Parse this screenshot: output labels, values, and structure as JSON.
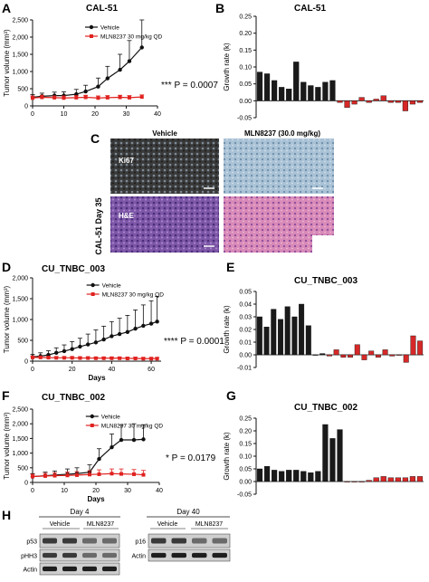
{
  "colors": {
    "vehicle": "#111111",
    "treated": "#e0221f",
    "bar_dark": "#1a1a1a",
    "bar_red": "#d62828"
  },
  "chart_data": [
    {
      "panel": "A",
      "type": "line",
      "title": "CAL-51",
      "xlabel": "",
      "ylabel": "Tumor volume (mm³)",
      "xlim": [
        0,
        40
      ],
      "ylim": [
        0,
        2500
      ],
      "xticks": [
        "0",
        "10",
        "20",
        "30",
        "40"
      ],
      "yticks": [
        "0",
        "500",
        "1,000",
        "1,500",
        "2,000",
        "2,500"
      ],
      "legend": "top-right",
      "annotation": "*** P = 0.0007",
      "series": [
        {
          "name": "Vehicle",
          "color": "#111111",
          "x": [
            0,
            3,
            7,
            10,
            14,
            17,
            21,
            24,
            28,
            31,
            35
          ],
          "y": [
            250,
            280,
            300,
            300,
            340,
            420,
            560,
            800,
            1050,
            1300,
            1700
          ],
          "err": [
            80,
            90,
            100,
            110,
            140,
            180,
            250,
            350,
            450,
            600,
            800
          ]
        },
        {
          "name": "MLN8237 30 mg/kg QD",
          "color": "#e0221f",
          "x": [
            0,
            3,
            7,
            10,
            14,
            17,
            21,
            24,
            28,
            31,
            35
          ],
          "y": [
            230,
            250,
            240,
            230,
            240,
            250,
            230,
            240,
            250,
            240,
            260
          ],
          "err": [
            60,
            60,
            50,
            60,
            60,
            60,
            60,
            60,
            60,
            60,
            60
          ]
        }
      ]
    },
    {
      "panel": "B",
      "type": "bar",
      "title": "CAL-51",
      "ylabel": "Growth rate (k)",
      "ylim": [
        -0.05,
        0.25
      ],
      "yticks": [
        "-0.05",
        "0.00",
        "0.05",
        "0.10",
        "0.15",
        "0.20",
        "0.25"
      ],
      "values": [
        0.085,
        0.08,
        0.06,
        0.04,
        0.035,
        0.115,
        0.055,
        0.045,
        0.04,
        0.055,
        0.06,
        -0.005,
        -0.02,
        -0.01,
        0.01,
        -0.005,
        0.005,
        0.015,
        -0.005,
        -0.005,
        -0.03,
        -0.01,
        -0.005
      ],
      "treated_from_index": 11
    },
    {
      "panel": "D",
      "type": "line",
      "title": "CU_TNBC_003",
      "xlabel": "Days",
      "ylabel": "Tumor volume (mm³)",
      "xlim": [
        0,
        65
      ],
      "ylim": [
        0,
        2000
      ],
      "xticks": [
        "0",
        "20",
        "40",
        "60"
      ],
      "yticks": [
        "0",
        "500",
        "1,000",
        "1,500",
        "2,000"
      ],
      "legend": "top-right",
      "annotation": "**** P = 0.0001",
      "series": [
        {
          "name": "Vehicle",
          "color": "#111111",
          "x": [
            0,
            4,
            8,
            12,
            16,
            20,
            24,
            28,
            32,
            36,
            40,
            44,
            48,
            52,
            56,
            60,
            63
          ],
          "y": [
            100,
            120,
            150,
            200,
            240,
            290,
            350,
            400,
            450,
            520,
            600,
            650,
            700,
            780,
            850,
            900,
            950
          ],
          "err": [
            60,
            80,
            100,
            120,
            150,
            180,
            200,
            250,
            300,
            320,
            350,
            380,
            400,
            450,
            500,
            550,
            600
          ]
        },
        {
          "name": "MLN8237 30 mg/kg QD",
          "color": "#e0221f",
          "x": [
            0,
            4,
            8,
            12,
            16,
            20,
            24,
            28,
            32,
            36,
            40,
            44,
            48,
            52,
            56,
            60,
            63
          ],
          "y": [
            90,
            90,
            85,
            80,
            80,
            80,
            75,
            75,
            70,
            70,
            70,
            70,
            65,
            65,
            60,
            60,
            60
          ],
          "err": [
            30,
            30,
            30,
            30,
            30,
            30,
            30,
            30,
            30,
            30,
            30,
            30,
            30,
            30,
            30,
            30,
            30
          ]
        }
      ]
    },
    {
      "panel": "E",
      "type": "bar",
      "title": "CU_TNBC_003",
      "ylabel": "Growth rate (k)",
      "ylim": [
        -0.01,
        0.05
      ],
      "yticks": [
        "-0.01",
        "0.00",
        "0.01",
        "0.02",
        "0.03",
        "0.04",
        "0.05"
      ],
      "values": [
        0.03,
        0.022,
        0.036,
        0.028,
        0.038,
        0.03,
        0.04,
        0.023,
        0.0,
        0.001,
        -0.001,
        0.004,
        -0.002,
        -0.002,
        0.008,
        -0.004,
        0.003,
        -0.002,
        0.004,
        -0.001,
        0.0,
        -0.006,
        0.015,
        0.011
      ],
      "treated_from_index": 10
    },
    {
      "panel": "F",
      "type": "line",
      "title": "CU_TNBC_002",
      "xlabel": "Days",
      "ylabel": "Tumor volume (mm³)",
      "xlim": [
        0,
        40
      ],
      "ylim": [
        0,
        2500
      ],
      "xticks": [
        "0",
        "10",
        "20",
        "30",
        "40"
      ],
      "yticks": [
        "0",
        "500",
        "1,000",
        "1,500",
        "2,000",
        "2,500"
      ],
      "legend": "top-right",
      "annotation": "* P = 0.0179",
      "series": [
        {
          "name": "Vehicle",
          "color": "#111111",
          "x": [
            0,
            4,
            7,
            11,
            14,
            18,
            21,
            25,
            28,
            32,
            35
          ],
          "y": [
            200,
            230,
            250,
            280,
            300,
            350,
            800,
            1200,
            1450,
            1450,
            1470
          ],
          "err": [
            100,
            120,
            140,
            180,
            200,
            250,
            350,
            450,
            500,
            550,
            500
          ]
        },
        {
          "name": "MLN8237 30 mg/kg QD",
          "color": "#e0221f",
          "x": [
            0,
            4,
            7,
            11,
            14,
            18,
            21,
            25,
            28,
            32,
            35
          ],
          "y": [
            200,
            220,
            230,
            240,
            250,
            270,
            280,
            300,
            290,
            280,
            260
          ],
          "err": [
            80,
            90,
            100,
            110,
            120,
            130,
            150,
            160,
            170,
            160,
            150
          ]
        }
      ]
    },
    {
      "panel": "G",
      "type": "bar",
      "title": "CU_TNBC_002",
      "ylabel": "Growth rate (k)",
      "ylim": [
        -0.05,
        0.25
      ],
      "yticks": [
        "-0.05",
        "0.00",
        "0.05",
        "0.10",
        "0.15",
        "0.20",
        "0.25"
      ],
      "values": [
        0.05,
        0.06,
        0.045,
        0.04,
        0.045,
        0.045,
        0.04,
        0.035,
        0.04,
        0.225,
        0.17,
        0.205,
        0.0,
        0.0,
        0.0,
        0.005,
        0.015,
        0.02,
        0.015,
        0.015,
        0.015,
        0.02,
        0.02
      ],
      "treated_from_index": 12
    }
  ],
  "panel_a": {
    "letter": "A",
    "p_text": "*** P = 0.0007"
  },
  "panel_b": {
    "letter": "B"
  },
  "panel_c": {
    "letter": "C",
    "col1": "Vehicle",
    "col2": "MLN8237 (30.0 mg/kg)",
    "row1": "Ki67",
    "row2": "H&E",
    "side": "CAL-51 Day 35"
  },
  "panel_d": {
    "letter": "D",
    "p_text": "**** P = 0.0001"
  },
  "panel_e": {
    "letter": "E"
  },
  "panel_f": {
    "letter": "F",
    "p_text": "* P = 0.0179"
  },
  "panel_g": {
    "letter": "G"
  },
  "panel_h": {
    "letter": "H",
    "left_title": "Day 4",
    "left_col1": "Vehicle",
    "left_col2": "MLN8237",
    "left_rows": [
      "p53",
      "pHH3",
      "Actin"
    ],
    "right_title": "Day 40",
    "right_col1": "Vehicle",
    "right_col2": "MLN8237",
    "right_rows": [
      "p16",
      "Actin"
    ]
  }
}
